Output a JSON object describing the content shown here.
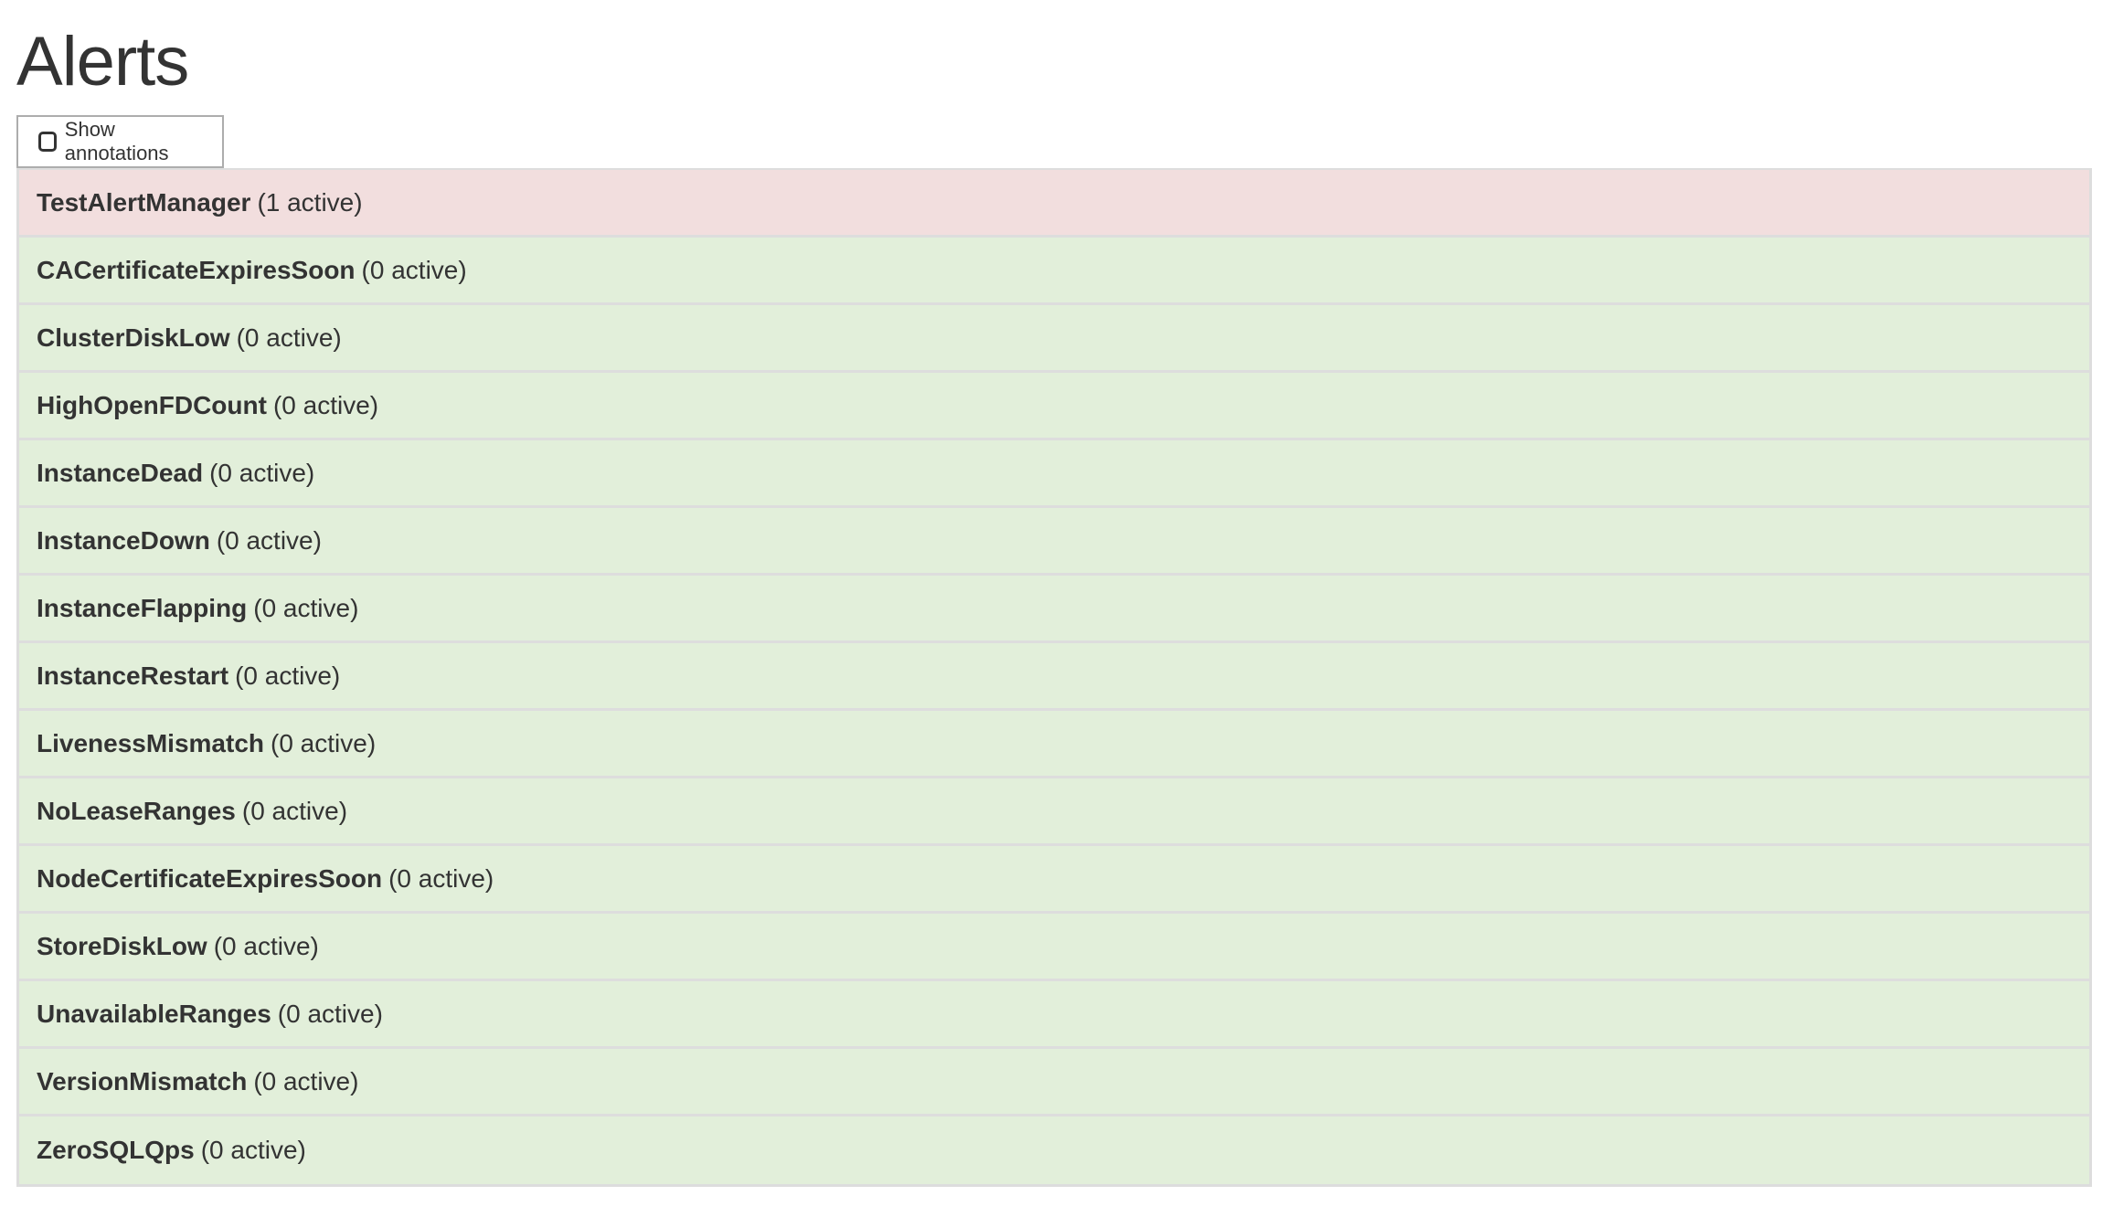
{
  "page": {
    "title": "Alerts"
  },
  "annotations_toggle": {
    "label": "Show annotations",
    "checked": false
  },
  "colors": {
    "firing": "#f2dede",
    "inactive": "#e2efda",
    "border": "#dddddd"
  },
  "alerts": [
    {
      "name": "TestAlertManager",
      "count": "(1 active)",
      "state": "firing"
    },
    {
      "name": "CACertificateExpiresSoon",
      "count": "(0 active)",
      "state": "inactive"
    },
    {
      "name": "ClusterDiskLow",
      "count": "(0 active)",
      "state": "inactive"
    },
    {
      "name": "HighOpenFDCount",
      "count": "(0 active)",
      "state": "inactive"
    },
    {
      "name": "InstanceDead",
      "count": "(0 active)",
      "state": "inactive"
    },
    {
      "name": "InstanceDown",
      "count": "(0 active)",
      "state": "inactive"
    },
    {
      "name": "InstanceFlapping",
      "count": "(0 active)",
      "state": "inactive"
    },
    {
      "name": "InstanceRestart",
      "count": "(0 active)",
      "state": "inactive"
    },
    {
      "name": "LivenessMismatch",
      "count": "(0 active)",
      "state": "inactive"
    },
    {
      "name": "NoLeaseRanges",
      "count": "(0 active)",
      "state": "inactive"
    },
    {
      "name": "NodeCertificateExpiresSoon",
      "count": "(0 active)",
      "state": "inactive"
    },
    {
      "name": "StoreDiskLow",
      "count": "(0 active)",
      "state": "inactive"
    },
    {
      "name": "UnavailableRanges",
      "count": "(0 active)",
      "state": "inactive"
    },
    {
      "name": "VersionMismatch",
      "count": "(0 active)",
      "state": "inactive"
    },
    {
      "name": "ZeroSQLQps",
      "count": "(0 active)",
      "state": "inactive"
    }
  ]
}
